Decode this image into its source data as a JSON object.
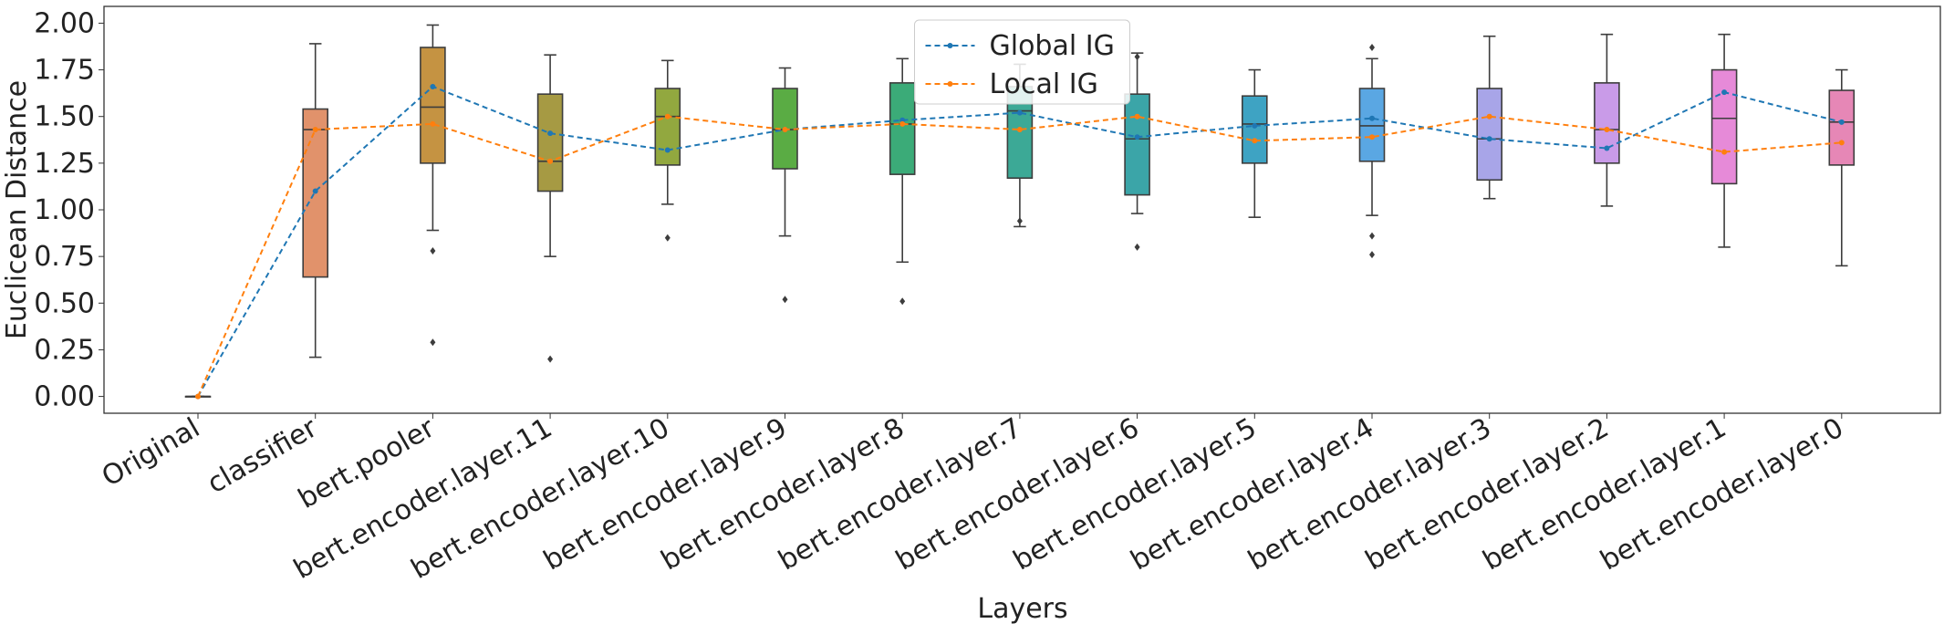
{
  "chart_data": {
    "type": "box",
    "x_label": "Layers",
    "y_label": "Euclicean Distance",
    "categories": [
      "Original",
      "classifier",
      "bert.pooler",
      "bert.encoder.layer.11",
      "bert.encoder.layer.10",
      "bert.encoder.layer.9",
      "bert.encoder.layer.8",
      "bert.encoder.layer.7",
      "bert.encoder.layer.6",
      "bert.encoder.layer.5",
      "bert.encoder.layer.4",
      "bert.encoder.layer.3",
      "bert.encoder.layer.2",
      "bert.encoder.layer.1",
      "bert.encoder.layer.0"
    ],
    "boxes": [
      {
        "whislo": 0,
        "q1": 0,
        "med": 0,
        "q3": 0,
        "whishi": 0,
        "fliers": [],
        "color": "#3274a1"
      },
      {
        "whislo": 0.21,
        "q1": 0.64,
        "med": 1.43,
        "q3": 1.54,
        "whishi": 1.89,
        "fliers": [],
        "color": "#e1926b"
      },
      {
        "whislo": 0.89,
        "q1": 1.25,
        "med": 1.55,
        "q3": 1.87,
        "whishi": 1.99,
        "fliers": [
          0.78,
          0.29
        ],
        "color": "#c59342"
      },
      {
        "whislo": 0.75,
        "q1": 1.1,
        "med": 1.26,
        "q3": 1.62,
        "whishi": 1.83,
        "fliers": [
          0.2
        ],
        "color": "#a69a43"
      },
      {
        "whislo": 1.03,
        "q1": 1.24,
        "med": 1.5,
        "q3": 1.65,
        "whishi": 1.8,
        "fliers": [
          0.85
        ],
        "color": "#92a83f"
      },
      {
        "whislo": 0.86,
        "q1": 1.22,
        "med": 1.43,
        "q3": 1.65,
        "whishi": 1.76,
        "fliers": [
          0.52
        ],
        "color": "#5aac44"
      },
      {
        "whislo": 0.72,
        "q1": 1.19,
        "med": 1.46,
        "q3": 1.68,
        "whishi": 1.81,
        "fliers": [
          0.51
        ],
        "color": "#3bab78"
      },
      {
        "whislo": 0.91,
        "q1": 1.17,
        "med": 1.53,
        "q3": 1.66,
        "whishi": 1.78,
        "fliers": [
          0.94
        ],
        "color": "#3ca996"
      },
      {
        "whislo": 0.98,
        "q1": 1.08,
        "med": 1.38,
        "q3": 1.62,
        "whishi": 1.84,
        "fliers": [
          1.82,
          0.8
        ],
        "color": "#3ba5a8"
      },
      {
        "whislo": 0.96,
        "q1": 1.25,
        "med": 1.46,
        "q3": 1.61,
        "whishi": 1.75,
        "fliers": [],
        "color": "#3ea3c3"
      },
      {
        "whislo": 0.97,
        "q1": 1.26,
        "med": 1.45,
        "q3": 1.65,
        "whishi": 1.81,
        "fliers": [
          1.87,
          0.86,
          0.76
        ],
        "color": "#5aa7e3"
      },
      {
        "whislo": 1.06,
        "q1": 1.16,
        "med": 1.38,
        "q3": 1.65,
        "whishi": 1.93,
        "fliers": [],
        "color": "#a8a5e8"
      },
      {
        "whislo": 1.02,
        "q1": 1.25,
        "med": 1.43,
        "q3": 1.68,
        "whishi": 1.94,
        "fliers": [],
        "color": "#c99be8"
      },
      {
        "whislo": 0.8,
        "q1": 1.14,
        "med": 1.49,
        "q3": 1.75,
        "whishi": 1.94,
        "fliers": [],
        "color": "#e68ad8"
      },
      {
        "whislo": 0.7,
        "q1": 1.24,
        "med": 1.47,
        "q3": 1.64,
        "whishi": 1.75,
        "fliers": [],
        "color": "#e687b6"
      }
    ],
    "series": [
      {
        "name": "Global IG",
        "color": "#1f77b4",
        "values": [
          0,
          1.1,
          1.66,
          1.41,
          1.32,
          1.43,
          1.48,
          1.52,
          1.39,
          1.45,
          1.49,
          1.38,
          1.33,
          1.63,
          1.47
        ]
      },
      {
        "name": "Local IG",
        "color": "#ff7f0e",
        "values": [
          0,
          1.43,
          1.46,
          1.26,
          1.5,
          1.43,
          1.46,
          1.43,
          1.5,
          1.37,
          1.39,
          1.5,
          1.43,
          1.31,
          1.36
        ]
      }
    ],
    "ylim": [
      -0.09,
      2.09
    ],
    "yticks": [
      {
        "value": 0,
        "label": "0.00"
      },
      {
        "value": 0.25,
        "label": "0.25"
      },
      {
        "value": 0.5,
        "label": "0.50"
      },
      {
        "value": 0.75,
        "label": "0.75"
      },
      {
        "value": 1,
        "label": "1.00"
      },
      {
        "value": 1.25,
        "label": "1.25"
      },
      {
        "value": 1.5,
        "label": "1.50"
      },
      {
        "value": 1.75,
        "label": "1.75"
      },
      {
        "value": 2,
        "label": "2.00"
      }
    ],
    "legend": "upper center"
  }
}
